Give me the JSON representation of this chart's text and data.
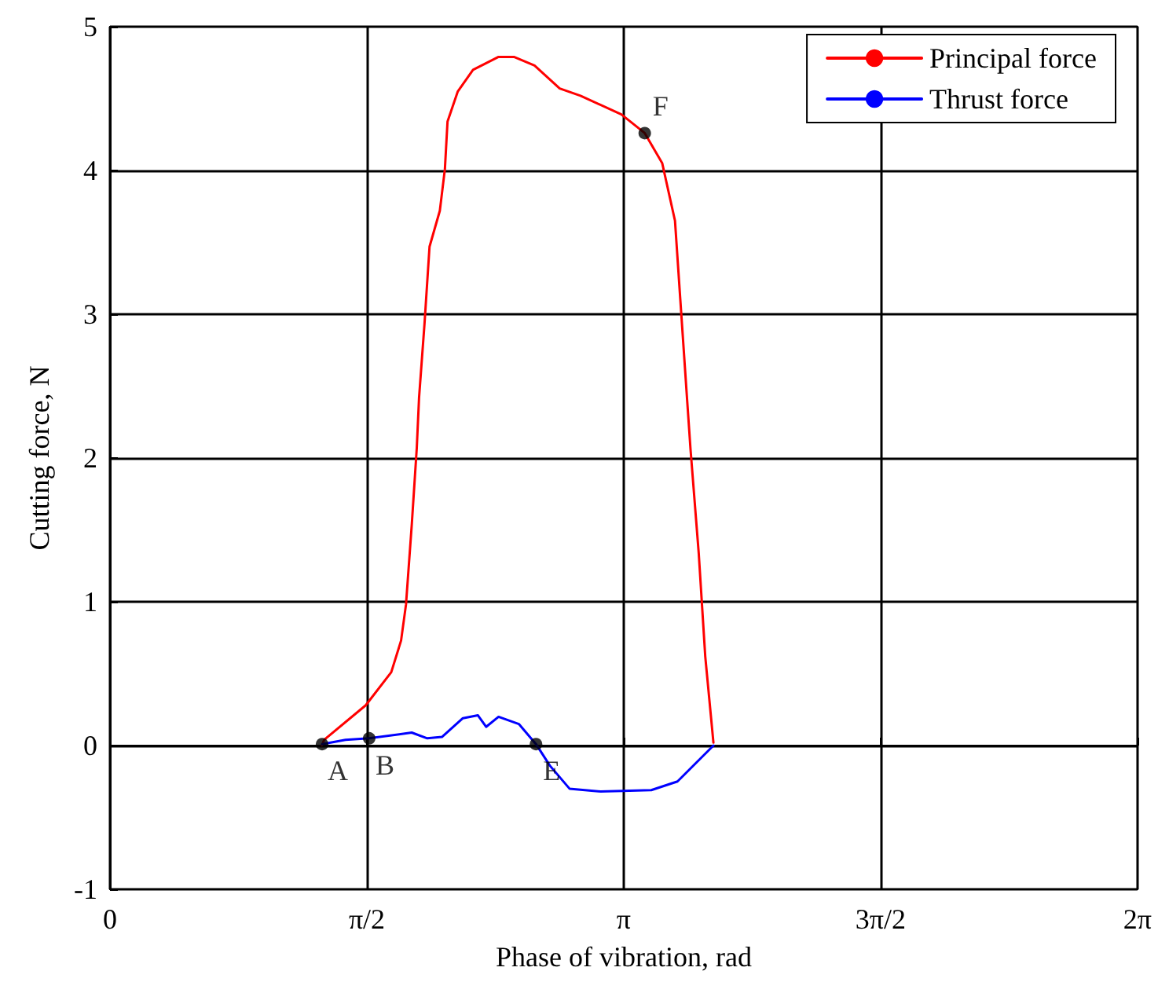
{
  "chart_data": {
    "type": "line",
    "xlabel": "Phase of vibration, rad",
    "ylabel": "Cutting force, N",
    "xlim": [
      0,
      6.2832
    ],
    "ylim": [
      -1,
      5
    ],
    "xticks": [
      {
        "value": 0,
        "label": "0"
      },
      {
        "value": 1.5708,
        "label": "π/2"
      },
      {
        "value": 3.1416,
        "label": "π"
      },
      {
        "value": 4.7124,
        "label": "3π/2"
      },
      {
        "value": 6.2832,
        "label": "2π"
      }
    ],
    "yticks": [
      -1,
      0,
      1,
      2,
      3,
      4,
      5
    ],
    "grid": true,
    "legend": "top right",
    "marker": "none",
    "line_style": "solid",
    "series": [
      {
        "name": "Principal force",
        "color": "#ff0000",
        "x": [
          1.295,
          1.31,
          1.564,
          1.72,
          1.78,
          1.81,
          1.845,
          1.876,
          1.89,
          1.923,
          1.954,
          2.017,
          2.048,
          2.064,
          2.127,
          2.22,
          2.376,
          2.47,
          2.596,
          2.75,
          2.877,
          3.127,
          3.27,
          3.377,
          3.455,
          3.487,
          3.53,
          3.55,
          3.6,
          3.64,
          3.69
        ],
        "values": [
          0,
          0.04,
          0.28,
          0.51,
          0.73,
          0.98,
          1.53,
          2.07,
          2.42,
          2.93,
          3.47,
          3.72,
          4.01,
          4.34,
          4.55,
          4.7,
          4.79,
          4.79,
          4.73,
          4.57,
          4.52,
          4.39,
          4.26,
          4.05,
          3.65,
          3.11,
          2.39,
          2.06,
          1.34,
          0.62,
          0.02
        ]
      },
      {
        "name": "Thrust force",
        "color": "#0000ff",
        "x": [
          1.297,
          1.44,
          1.585,
          1.845,
          1.94,
          2.03,
          2.158,
          2.25,
          2.3,
          2.376,
          2.5,
          2.605,
          2.69,
          2.81,
          3.0,
          3.31,
          3.47,
          3.69
        ],
        "values": [
          0.01,
          0.04,
          0.05,
          0.09,
          0.05,
          0.06,
          0.19,
          0.21,
          0.13,
          0.2,
          0.15,
          0.01,
          -0.14,
          -0.3,
          -0.32,
          -0.31,
          -0.25,
          0
        ]
      }
    ],
    "annotations": [
      {
        "text": "A",
        "x": 1.297,
        "y": 0.01
      },
      {
        "text": "B",
        "x": 1.585,
        "y": 0.05
      },
      {
        "text": "E",
        "x": 2.605,
        "y": 0.01
      },
      {
        "text": "F",
        "x": 3.27,
        "y": 4.26
      }
    ]
  }
}
